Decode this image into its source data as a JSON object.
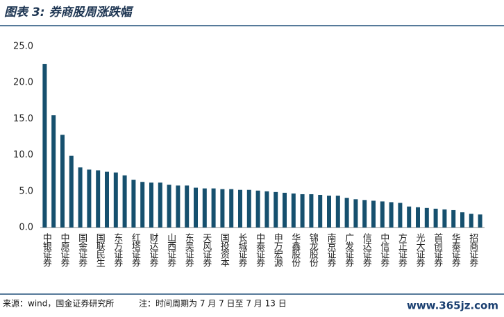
{
  "title": "图表 3: 券商股周涨跌幅",
  "source": "来源：wind，国金证券研究所",
  "note": "注：时间周期为 7 月 7 日至 7 月 13 日",
  "watermark": "www.365jz.com",
  "chart_data": {
    "type": "bar",
    "color": "#16506e",
    "categories": [
      "中银证券",
      null,
      "中原证券",
      null,
      "国金证券",
      null,
      "国联民生",
      null,
      "东方证券",
      null,
      "红塔证券",
      null,
      "财达证券",
      null,
      "山西证券",
      null,
      "东吴证券",
      null,
      "天风证券",
      null,
      "国投资本",
      null,
      "长城证券",
      null,
      "中泰证券",
      null,
      "申万宏源",
      null,
      "华鑫股份",
      null,
      "锦龙股份",
      null,
      "南京证券",
      null,
      "广发证券",
      null,
      "信达证券",
      null,
      "中信证券",
      null,
      "方正证券",
      null,
      "光大证券",
      null,
      "首创证券",
      null,
      "华泰证券",
      null,
      "招商证券",
      null
    ],
    "values": [
      22.6,
      15.5,
      12.8,
      9.9,
      8.3,
      8.0,
      7.9,
      7.7,
      7.6,
      7.2,
      6.6,
      6.3,
      6.2,
      6.2,
      5.9,
      5.8,
      5.8,
      5.5,
      5.4,
      5.4,
      5.3,
      5.3,
      5.2,
      5.2,
      5.1,
      5.0,
      4.9,
      4.8,
      4.7,
      4.6,
      4.6,
      4.5,
      4.4,
      4.4,
      4.1,
      3.9,
      3.8,
      3.7,
      3.6,
      3.5,
      3.4,
      2.9,
      2.8,
      2.7,
      2.6,
      2.5,
      2.4,
      2.1,
      1.9,
      1.8
    ],
    "ylim": [
      0,
      25
    ],
    "yticks": [
      {
        "value": 0,
        "label": "0.0"
      },
      {
        "value": 5,
        "label": "5.0"
      },
      {
        "value": 10,
        "label": "10.0"
      },
      {
        "value": 15,
        "label": "15.0"
      },
      {
        "value": 20,
        "label": "20.0"
      },
      {
        "value": 25,
        "label": "25.0"
      }
    ],
    "grid": false
  }
}
